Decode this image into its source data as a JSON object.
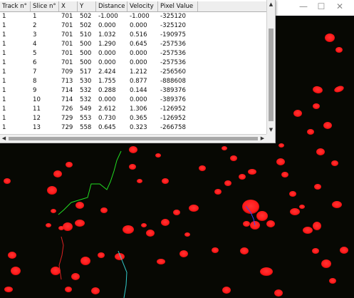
{
  "window_controls": {
    "minimize": "—",
    "maximize": "☐",
    "close": "✕"
  },
  "table": {
    "columns": [
      "Track n°",
      "Slice n°",
      "X",
      "Y",
      "Distance",
      "Velocity",
      "Pixel Value"
    ],
    "rows": [
      [
        "1",
        "1",
        "701",
        "502",
        "-1.000",
        "-1.000",
        "-325120"
      ],
      [
        "1",
        "2",
        "701",
        "502",
        "0.000",
        "0.000",
        "-325120"
      ],
      [
        "1",
        "3",
        "701",
        "510",
        "1.032",
        "0.516",
        "-190975"
      ],
      [
        "1",
        "4",
        "701",
        "500",
        "1.290",
        "0.645",
        "-257536"
      ],
      [
        "1",
        "5",
        "701",
        "500",
        "0.000",
        "0.000",
        "-257536"
      ],
      [
        "1",
        "6",
        "701",
        "500",
        "0.000",
        "0.000",
        "-257536"
      ],
      [
        "1",
        "7",
        "709",
        "517",
        "2.424",
        "1.212",
        "-256560"
      ],
      [
        "1",
        "8",
        "713",
        "530",
        "1.755",
        "0.877",
        "-888608"
      ],
      [
        "1",
        "9",
        "714",
        "532",
        "0.288",
        "0.144",
        "-389376"
      ],
      [
        "1",
        "10",
        "714",
        "532",
        "0.000",
        "0.000",
        "-389376"
      ],
      [
        "1",
        "11",
        "726",
        "549",
        "2.612",
        "1.306",
        "-126952"
      ],
      [
        "1",
        "12",
        "729",
        "553",
        "0.730",
        "0.365",
        "-126952"
      ],
      [
        "1",
        "13",
        "729",
        "558",
        "0.645",
        "0.323",
        "-266758"
      ]
    ],
    "scroll_arrows": {
      "up": "▲",
      "down": "▼",
      "left": "◀",
      "right": "▶"
    }
  },
  "colors": {
    "nucleus": "#ff1a1a",
    "nucleus_core": "#ff3333",
    "background": "#070803",
    "track_green": "#22dd22",
    "track_cyan": "#33cccc",
    "track_red": "#dd2222",
    "track_blue": "#3344ff"
  }
}
